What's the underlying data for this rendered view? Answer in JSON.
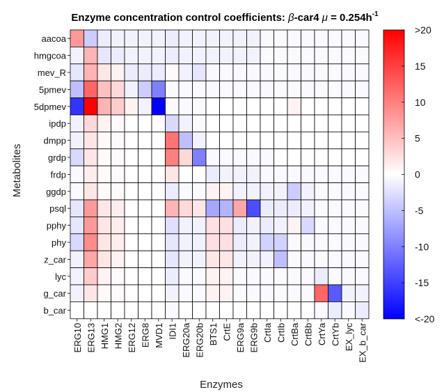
{
  "chart_data": {
    "type": "heatmap",
    "title": "Enzyme concentration control coefficients: ",
    "title_beta": "β",
    "title_strain": "-car4 ",
    "title_mu": "μ",
    "title_value": " = 0.254h",
    "title_exp": "-1",
    "xlabel": "Enzymes",
    "ylabel": "Metabolites",
    "x_categories": [
      "ERG10",
      "ERG13",
      "HMG1",
      "HMG2",
      "ERG12",
      "ERG8",
      "MVD1",
      "IDI1",
      "ERG20a",
      "ERG20b",
      "BTS1",
      "CrtE",
      "ERG9a",
      "ERG9b",
      "CrtIa",
      "CrtIb",
      "CrtBa",
      "CrtBb",
      "CrtYa",
      "CrtYb",
      "EX_lyc",
      "EX_b_car"
    ],
    "y_categories": [
      "aacoa",
      "hmgcoa",
      "mev_R",
      "5pmev",
      "5dpmev",
      "ipdp",
      "dmpp",
      "grdp",
      "frdp",
      "ggdp",
      "psql",
      "pphy",
      "phy",
      "z_car",
      "lyc",
      "g_car",
      "b_car"
    ],
    "color_range": [
      -20,
      20
    ],
    "colorbar_ticks": [
      ">20",
      "15",
      "10",
      "5",
      "0",
      "-5",
      "-10",
      "-15",
      "<-20"
    ],
    "colorbar_values": [
      20,
      15,
      10,
      5,
      0,
      -5,
      -10,
      -15,
      -20
    ],
    "colors": {
      "positive": "#ff0000",
      "zero": "#ffffff",
      "negative": "#0000ff",
      "grid": "#000000"
    },
    "values": [
      [
        8,
        -4,
        -1.5,
        -1,
        -1,
        -1,
        -1,
        -1.5,
        -1,
        -1,
        -1,
        -1,
        -1,
        -1,
        -0.5,
        -0.5,
        -0.5,
        -0.5,
        -0.5,
        -0.5,
        -0.5,
        -0.5
      ],
      [
        -1,
        6,
        -2,
        -1.5,
        -1,
        -1,
        -1,
        -1.5,
        -1,
        -1,
        -1,
        -1,
        -1,
        -1,
        -0.5,
        -0.5,
        -0.5,
        -0.5,
        -0.5,
        -0.5,
        -0.5,
        -0.5
      ],
      [
        -2,
        6,
        2,
        1,
        -1.5,
        -1.5,
        -1.5,
        0.5,
        -1,
        -2,
        -0.5,
        -0.5,
        -0.5,
        -0.5,
        -0.5,
        -0.5,
        -0.5,
        -0.5,
        -0.5,
        -0.5,
        -0.5,
        -0.5
      ],
      [
        -5,
        12,
        5,
        3,
        -1,
        -4,
        -10,
        -0.5,
        -0.5,
        -0.5,
        -0.5,
        -0.5,
        -0.5,
        -0.5,
        -0.5,
        -0.5,
        -0.5,
        -0.5,
        -0.5,
        -0.5,
        -0.5,
        -0.5
      ],
      [
        -16,
        20,
        6,
        4,
        1,
        -1,
        -20,
        -0.5,
        -0.5,
        -0.5,
        0,
        0,
        0,
        0,
        0,
        0,
        1,
        0,
        0,
        0,
        0,
        0
      ],
      [
        -1,
        3,
        1,
        0.5,
        0,
        0,
        0,
        -3,
        -1,
        -0.5,
        0,
        0,
        0,
        0,
        0,
        0,
        0,
        0,
        0,
        0,
        0,
        0
      ],
      [
        -1,
        2,
        0.5,
        0.5,
        0,
        0,
        0,
        11,
        -5,
        -1,
        0,
        0,
        0,
        0,
        0,
        0,
        0,
        0,
        0,
        0,
        0,
        0
      ],
      [
        -3,
        2,
        0.5,
        0.5,
        0,
        0,
        0,
        10,
        3,
        -10,
        -0.5,
        -0.5,
        -0.5,
        -0.5,
        -0.5,
        0,
        0,
        0,
        0,
        0,
        0,
        0
      ],
      [
        -0.5,
        1.5,
        0.5,
        0.5,
        0,
        0,
        0,
        2,
        0,
        0,
        -1.5,
        -1,
        -1,
        -1,
        -0.5,
        -0.5,
        -0.5,
        -0.5,
        -0.5,
        -0.5,
        -0.5,
        -0.5
      ],
      [
        -0.5,
        2,
        0.5,
        0.5,
        0,
        0,
        0,
        -1.5,
        -0.5,
        -0.5,
        1,
        1,
        -1,
        -1,
        -1,
        -1,
        -4,
        -1,
        -0.5,
        -0.5,
        -0.5,
        -0.5
      ],
      [
        -2,
        8,
        2,
        1.5,
        0,
        0,
        0,
        6,
        3,
        2,
        -7,
        -6,
        7,
        -14,
        -1.5,
        -1.5,
        -1.5,
        -1,
        -0.5,
        -0.5,
        -0.5,
        -0.5
      ],
      [
        -2,
        8,
        2,
        1.5,
        0,
        0,
        0,
        -2.5,
        -1,
        -1,
        2.5,
        2.5,
        -1.5,
        -1,
        -1.5,
        -1,
        1,
        -3,
        -0.5,
        -0.5,
        -0.5,
        -0.5
      ],
      [
        -3,
        9,
        2,
        1.5,
        0,
        0,
        0,
        -2,
        -1,
        -1,
        2.5,
        2.5,
        -1.5,
        -1,
        -3.5,
        -3.5,
        -0.5,
        -0.5,
        -0.5,
        -0.5,
        -0.5,
        -0.5
      ],
      [
        -1,
        7,
        2,
        1,
        0,
        0,
        0,
        -2,
        -1,
        -1,
        2,
        2,
        -1,
        -1,
        -1,
        -5,
        -0.5,
        -0.5,
        -0.5,
        -0.5,
        -0.5,
        -0.5
      ],
      [
        -1,
        4,
        1,
        0.5,
        0,
        0,
        0,
        -1.5,
        -0.5,
        -0.5,
        1,
        1,
        -0.5,
        -0.5,
        -0.5,
        -0.5,
        -0.5,
        -0.5,
        -1.5,
        -0.5,
        -0.5,
        -0.5
      ],
      [
        -1,
        2,
        0.5,
        0.5,
        0,
        0,
        0,
        -1,
        -0.5,
        -0.5,
        1,
        1,
        -0.5,
        -0.5,
        -0.5,
        -0.5,
        -0.5,
        -0.5,
        12,
        -13,
        -1,
        -1
      ],
      [
        0,
        0,
        0,
        0,
        0,
        0,
        0,
        -0.5,
        0,
        0,
        0,
        0,
        0,
        0,
        0,
        0,
        0,
        0,
        -0.5,
        -1.5,
        -0.5,
        -1.5
      ]
    ]
  }
}
